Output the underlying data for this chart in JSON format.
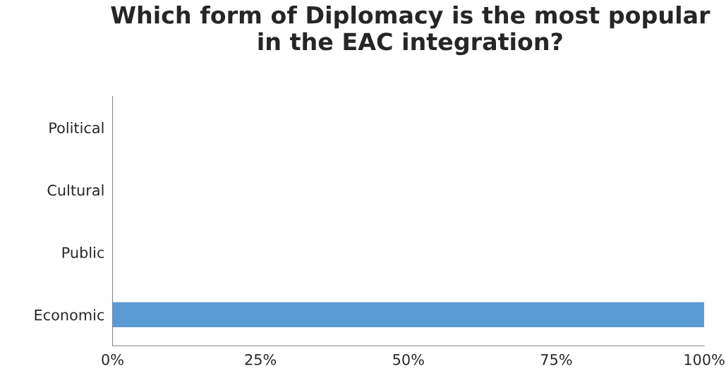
{
  "chart_data": {
    "type": "bar",
    "orientation": "horizontal",
    "title": "Which form of Diplomacy is the most popular in the EAC integration?",
    "categories": [
      "Political",
      "Cultural",
      "Public",
      "Economic"
    ],
    "values": [
      0,
      0,
      0,
      100
    ],
    "color": "#5b9bd5",
    "xlim": [
      0,
      100
    ],
    "xticks": [
      {
        "value": 0,
        "label": "0%"
      },
      {
        "value": 25,
        "label": "25%"
      },
      {
        "value": 50,
        "label": "50%"
      },
      {
        "value": 75,
        "label": "75%"
      },
      {
        "value": 100,
        "label": "100%"
      }
    ],
    "grid": false,
    "legend": false
  }
}
